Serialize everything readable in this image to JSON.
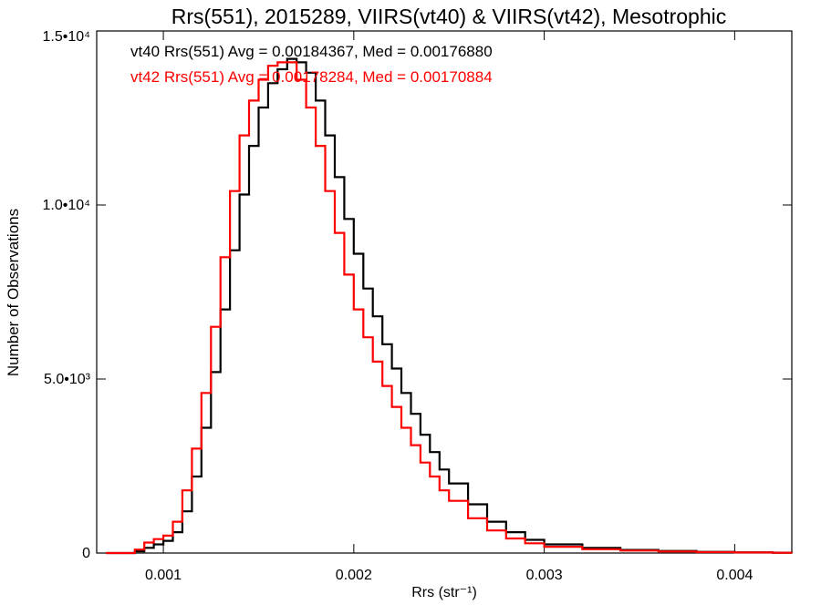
{
  "chart_data": {
    "type": "line",
    "title": "Rrs(551), 2015289, VIIRS(vt40) & VIIRS(vt42), Mesotrophic",
    "xlabel": "Rrs (str⁻¹)",
    "ylabel": "Number of Observations",
    "xlim": [
      0.00065,
      0.0043
    ],
    "ylim": [
      0,
      15000
    ],
    "x_ticks": [
      {
        "value": 0.001,
        "label": "0.001"
      },
      {
        "value": 0.002,
        "label": "0.002"
      },
      {
        "value": 0.003,
        "label": "0.003"
      },
      {
        "value": 0.004,
        "label": "0.004"
      }
    ],
    "y_ticks": [
      {
        "value": 0,
        "label": "0"
      },
      {
        "value": 5000,
        "label": "5.0•10³"
      },
      {
        "value": 10000,
        "label": "1.0•10⁴"
      },
      {
        "value": 15000,
        "label": "1.5•10⁴"
      }
    ],
    "grid": false,
    "legend_position": "top-left",
    "series": [
      {
        "name": "vt40",
        "legend_text": "vt40 Rrs(551) Avg = 0.00184367, Med = 0.00176880",
        "color": "#000000",
        "x": [
          0.0007,
          0.0008,
          0.00085,
          0.0009,
          0.00095,
          0.001,
          0.00105,
          0.0011,
          0.00115,
          0.0012,
          0.00125,
          0.0013,
          0.00135,
          0.0014,
          0.00145,
          0.0015,
          0.00155,
          0.0016,
          0.00165,
          0.0017,
          0.00175,
          0.0018,
          0.00185,
          0.0019,
          0.00195,
          0.002,
          0.00205,
          0.0021,
          0.00215,
          0.0022,
          0.00225,
          0.0023,
          0.00235,
          0.0024,
          0.00245,
          0.0025,
          0.0026,
          0.0027,
          0.0028,
          0.0029,
          0.003,
          0.0032,
          0.0034,
          0.0036,
          0.0038,
          0.004,
          0.0042,
          0.0043
        ],
        "y": [
          0,
          0,
          50,
          150,
          250,
          350,
          600,
          1200,
          2200,
          3600,
          5200,
          7000,
          8700,
          10300,
          11700,
          12800,
          13500,
          13900,
          14200,
          14100,
          13800,
          13000,
          12000,
          10800,
          9600,
          8600,
          7600,
          6800,
          6000,
          5300,
          4600,
          4000,
          3400,
          2900,
          2400,
          2000,
          1400,
          900,
          600,
          380,
          250,
          150,
          90,
          60,
          35,
          20,
          10,
          5
        ]
      },
      {
        "name": "vt42",
        "legend_text": "vt42 Rrs(551) Avg = 0.00178284, Med = 0.00170884",
        "color": "#ff0000",
        "x": [
          0.0007,
          0.0008,
          0.00085,
          0.0009,
          0.00095,
          0.001,
          0.00105,
          0.0011,
          0.00115,
          0.0012,
          0.00125,
          0.0013,
          0.00135,
          0.0014,
          0.00145,
          0.0015,
          0.00155,
          0.0016,
          0.00165,
          0.0017,
          0.00175,
          0.0018,
          0.00185,
          0.0019,
          0.00195,
          0.002,
          0.00205,
          0.0021,
          0.00215,
          0.0022,
          0.00225,
          0.0023,
          0.00235,
          0.0024,
          0.00245,
          0.0025,
          0.0026,
          0.0027,
          0.0028,
          0.0029,
          0.003,
          0.0032,
          0.0034,
          0.0036,
          0.0038,
          0.004,
          0.0042,
          0.0043
        ],
        "y": [
          0,
          0,
          100,
          300,
          400,
          500,
          900,
          1800,
          3000,
          4600,
          6500,
          8500,
          10400,
          12000,
          13000,
          13600,
          14000,
          14100,
          14100,
          13600,
          12800,
          11700,
          10400,
          9200,
          8000,
          7000,
          6200,
          5500,
          4800,
          4200,
          3600,
          3100,
          2600,
          2200,
          1800,
          1500,
          1000,
          650,
          420,
          280,
          180,
          110,
          70,
          45,
          25,
          15,
          8,
          4
        ]
      }
    ]
  }
}
